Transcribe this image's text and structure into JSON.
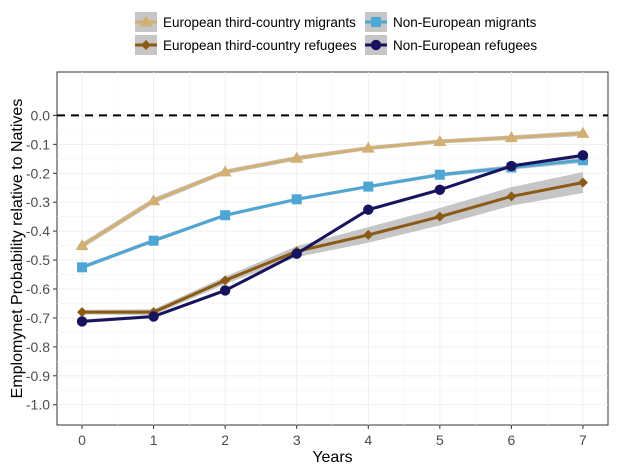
{
  "chart_data": {
    "type": "line",
    "x": [
      0,
      1,
      2,
      3,
      4,
      5,
      6,
      7
    ],
    "xlabel": "Years",
    "ylabel": "Emplomynet Probability relative to Natives",
    "xlim": [
      -0.35,
      7.35
    ],
    "ylim": [
      -1.07,
      0.15
    ],
    "xticks": [
      "0",
      "1",
      "2",
      "3",
      "4",
      "5",
      "6",
      "7"
    ],
    "yticks": [
      {
        "value": 0.0,
        "label": "0.0"
      },
      {
        "value": -0.1,
        "label": "-0.1"
      },
      {
        "value": -0.2,
        "label": "-0.2"
      },
      {
        "value": -0.3,
        "label": "-0.3"
      },
      {
        "value": -0.4,
        "label": "-0.4"
      },
      {
        "value": -0.5,
        "label": "-0.5"
      },
      {
        "value": -0.6,
        "label": "-0.6"
      },
      {
        "value": -0.7,
        "label": "-0.7"
      },
      {
        "value": -0.8,
        "label": "-0.8"
      },
      {
        "value": -0.9,
        "label": "-0.9"
      },
      {
        "value": -1.0,
        "label": "-1.0"
      }
    ],
    "reference_line": {
      "y": 0.0,
      "style": "dashed",
      "color": "#000000"
    },
    "grid": true,
    "legend_position": "top",
    "series": [
      {
        "name": "European third-country migrants",
        "color": "#d2b073",
        "marker": "triangle",
        "values": [
          -0.45,
          -0.295,
          -0.195,
          -0.148,
          -0.113,
          -0.09,
          -0.077,
          -0.062
        ],
        "ci_lower": [
          -0.46,
          -0.305,
          -0.203,
          -0.156,
          -0.12,
          -0.097,
          -0.085,
          -0.071
        ],
        "ci_upper": [
          -0.44,
          -0.285,
          -0.187,
          -0.14,
          -0.106,
          -0.083,
          -0.069,
          -0.053
        ]
      },
      {
        "name": "Non-European migrants",
        "color": "#4ea6d5",
        "marker": "square",
        "values": [
          -0.525,
          -0.433,
          -0.345,
          -0.29,
          -0.246,
          -0.205,
          -0.18,
          -0.155
        ],
        "ci_lower": [
          -0.532,
          -0.44,
          -0.351,
          -0.296,
          -0.252,
          -0.212,
          -0.188,
          -0.164
        ],
        "ci_upper": [
          -0.518,
          -0.426,
          -0.339,
          -0.284,
          -0.24,
          -0.198,
          -0.172,
          -0.146
        ]
      },
      {
        "name": "European third-country refugees",
        "color": "#8b5a14",
        "marker": "diamond",
        "values": [
          -0.68,
          -0.68,
          -0.57,
          -0.47,
          -0.413,
          -0.35,
          -0.28,
          -0.232
        ],
        "ci_lower": [
          -0.688,
          -0.69,
          -0.583,
          -0.49,
          -0.44,
          -0.38,
          -0.312,
          -0.268
        ],
        "ci_upper": [
          -0.672,
          -0.67,
          -0.557,
          -0.452,
          -0.386,
          -0.32,
          -0.248,
          -0.196
        ]
      },
      {
        "name": "Non-European refugees",
        "color": "#17135e",
        "marker": "circle",
        "values": [
          -0.712,
          -0.695,
          -0.605,
          -0.478,
          -0.326,
          -0.257,
          -0.175,
          -0.138
        ],
        "ci_lower": [
          -0.718,
          -0.701,
          -0.611,
          -0.484,
          -0.332,
          -0.263,
          -0.181,
          -0.144
        ],
        "ci_upper": [
          -0.706,
          -0.689,
          -0.599,
          -0.472,
          -0.32,
          -0.251,
          -0.169,
          -0.132
        ]
      }
    ],
    "ci_band_color": "#b3b3b3"
  }
}
